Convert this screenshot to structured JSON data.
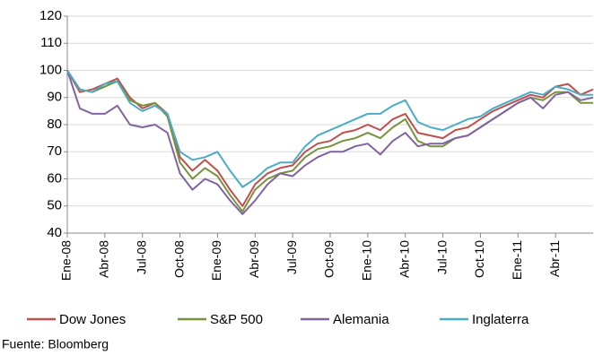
{
  "chart_data": {
    "type": "line",
    "categories": [
      "Ene-08",
      null,
      null,
      "Abr-08",
      null,
      null,
      "Jul-08",
      null,
      null,
      "Oct-08",
      null,
      null,
      "Ene-09",
      null,
      null,
      "Abr-09",
      null,
      null,
      "Jul-09",
      null,
      null,
      "Oct-09",
      null,
      null,
      "Ene-10",
      null,
      null,
      "Abr-10",
      null,
      null,
      "Jul-10",
      null,
      null,
      "Oct-10",
      null,
      null,
      "Ene-11",
      null,
      null,
      "Abr-11",
      null,
      null,
      null
    ],
    "series": [
      {
        "name": "Dow Jones",
        "color": "#c0504d",
        "values": [
          100,
          92,
          93,
          95,
          97,
          90,
          86,
          88,
          84,
          68,
          63,
          67,
          63,
          56,
          50,
          58,
          62,
          64,
          65,
          70,
          73,
          74,
          77,
          78,
          80,
          78,
          82,
          84,
          77,
          76,
          75,
          78,
          79,
          82,
          85,
          87,
          89,
          91,
          90,
          94,
          95,
          91,
          93
        ]
      },
      {
        "name": "S&P 500",
        "color": "#77933c",
        "values": [
          100,
          93,
          92,
          94,
          96,
          89,
          87,
          88,
          83,
          66,
          60,
          64,
          61,
          54,
          48,
          56,
          60,
          62,
          63,
          68,
          71,
          72,
          74,
          75,
          77,
          75,
          79,
          82,
          74,
          72,
          72,
          75,
          76,
          79,
          82,
          85,
          88,
          90,
          89,
          92,
          92,
          88,
          88
        ]
      },
      {
        "name": "Alemania",
        "color": "#8064a2",
        "values": [
          100,
          86,
          84,
          84,
          87,
          80,
          79,
          80,
          77,
          62,
          56,
          60,
          58,
          52,
          47,
          52,
          58,
          62,
          61,
          65,
          68,
          70,
          70,
          72,
          73,
          69,
          74,
          77,
          72,
          73,
          73,
          75,
          76,
          79,
          82,
          85,
          88,
          90,
          86,
          91,
          92,
          89,
          90
        ]
      },
      {
        "name": "Inglaterra",
        "color": "#4bacc6",
        "values": [
          100,
          93,
          92,
          95,
          96,
          88,
          85,
          87,
          84,
          70,
          67,
          68,
          70,
          63,
          57,
          60,
          64,
          66,
          66,
          72,
          76,
          78,
          80,
          82,
          84,
          84,
          87,
          89,
          81,
          79,
          78,
          80,
          82,
          83,
          86,
          88,
          90,
          92,
          91,
          94,
          93,
          91,
          91
        ]
      }
    ],
    "ylim": [
      40,
      120
    ],
    "yticks": [
      40,
      50,
      60,
      70,
      80,
      90,
      100,
      110,
      120
    ],
    "grid": true,
    "source": "Fuente: Bloomberg"
  }
}
